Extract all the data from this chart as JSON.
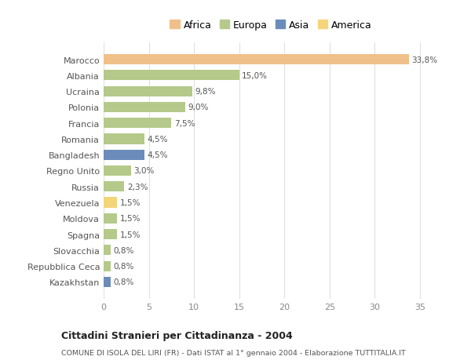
{
  "countries": [
    "Marocco",
    "Albania",
    "Ucraina",
    "Polonia",
    "Francia",
    "Romania",
    "Bangladesh",
    "Regno Unito",
    "Russia",
    "Venezuela",
    "Moldova",
    "Spagna",
    "Slovacchia",
    "Repubblica Ceca",
    "Kazakhstan"
  ],
  "values": [
    33.8,
    15.0,
    9.8,
    9.0,
    7.5,
    4.5,
    4.5,
    3.0,
    2.3,
    1.5,
    1.5,
    1.5,
    0.8,
    0.8,
    0.8
  ],
  "labels": [
    "33,8%",
    "15,0%",
    "9,8%",
    "9,0%",
    "7,5%",
    "4,5%",
    "4,5%",
    "3,0%",
    "2,3%",
    "1,5%",
    "1,5%",
    "1,5%",
    "0,8%",
    "0,8%",
    "0,8%"
  ],
  "colors": [
    "#f0c08a",
    "#b5c98a",
    "#b5c98a",
    "#b5c98a",
    "#b5c98a",
    "#b5c98a",
    "#6b8cba",
    "#b5c98a",
    "#b5c98a",
    "#f5d57a",
    "#b5c98a",
    "#b5c98a",
    "#b5c98a",
    "#b5c98a",
    "#6b8cba"
  ],
  "legend_labels": [
    "Africa",
    "Europa",
    "Asia",
    "America"
  ],
  "legend_colors": [
    "#f0c08a",
    "#b5c98a",
    "#6b8cba",
    "#f5d57a"
  ],
  "title": "Cittadini Stranieri per Cittadinanza - 2004",
  "subtitle": "COMUNE DI ISOLA DEL LIRI (FR) - Dati ISTAT al 1° gennaio 2004 - Elaborazione TUTTITALIA.IT",
  "xlim": [
    0,
    37
  ],
  "xticks": [
    0,
    5,
    10,
    15,
    20,
    25,
    30,
    35
  ],
  "bg_color": "#ffffff",
  "grid_color": "#e0e0e0",
  "bar_height": 0.65
}
